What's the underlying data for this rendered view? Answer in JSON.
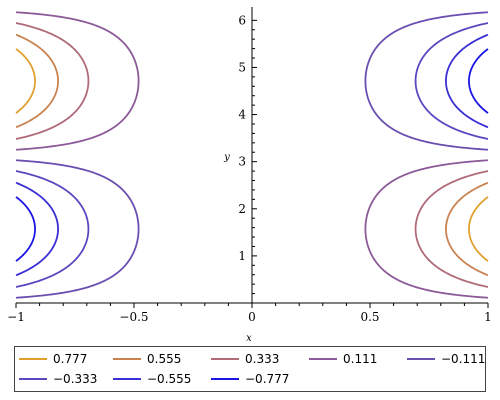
{
  "chart_data": {
    "type": "contour",
    "title": "",
    "xlabel": "x",
    "ylabel": "y",
    "xlim": [
      -1,
      1
    ],
    "ylim": [
      0,
      6.283
    ],
    "x_ticks": [
      {
        "value": -1,
        "label": "−1"
      },
      {
        "value": -0.5,
        "label": "−0.5"
      },
      {
        "value": 0,
        "label": "0"
      },
      {
        "value": 0.5,
        "label": "0.5"
      },
      {
        "value": 1,
        "label": "1"
      }
    ],
    "y_ticks": [
      {
        "value": 1,
        "label": "1"
      },
      {
        "value": 2,
        "label": "2"
      },
      {
        "value": 3,
        "label": "3"
      },
      {
        "value": 4,
        "label": "4"
      },
      {
        "value": 5,
        "label": "5"
      },
      {
        "value": 6,
        "label": "6"
      }
    ],
    "levels": [
      {
        "value": 0.777,
        "label": "0.777",
        "color": "#e0a030"
      },
      {
        "value": 0.555,
        "label": "0.555",
        "color": "#c98350"
      },
      {
        "value": 0.333,
        "label": "0.333",
        "color": "#b06a78"
      },
      {
        "value": 0.111,
        "label": "0.111",
        "color": "#8c5a98"
      },
      {
        "value": -0.111,
        "label": "−0.111",
        "color": "#6a4fb0"
      },
      {
        "value": -0.333,
        "label": "−0.333",
        "color": "#5a48c0"
      },
      {
        "value": -0.555,
        "label": "−0.555",
        "color": "#3a2ed6"
      },
      {
        "value": -0.777,
        "label": "−0.777",
        "color": "#1a14e6"
      }
    ],
    "legend_position": "bottom"
  }
}
